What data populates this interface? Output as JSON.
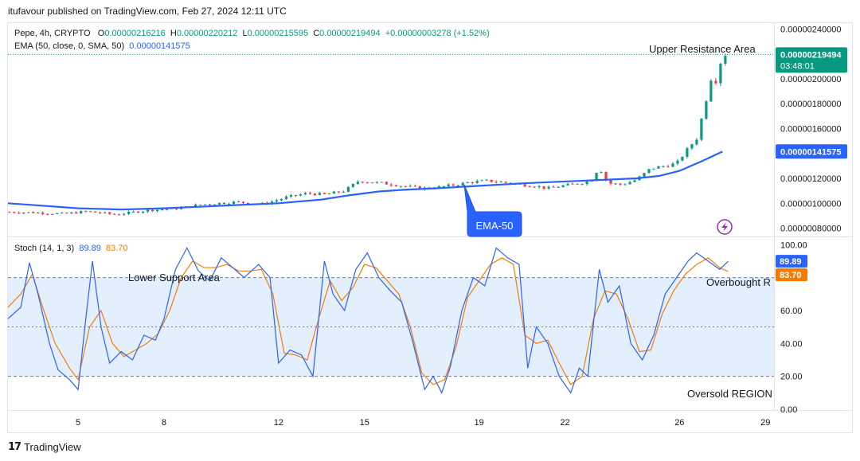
{
  "header": {
    "publisher": "itufavour published on TradingView.com, Feb 27, 2024 12:11 UTC"
  },
  "main_legend": {
    "symbol": "Pepe, 4h, CRYPTO",
    "o_label": "O",
    "o_value": "0.00000216216",
    "h_label": "H",
    "h_value": "0.00000220212",
    "l_label": "L",
    "l_value": "0.00000215595",
    "c_label": "C",
    "c_value": "0.00000219494",
    "change": "+0.00000003278 (+1.52%)"
  },
  "ema_legend": {
    "label": "EMA (50, close, 0, SMA, 50)",
    "value": "0.00000141575"
  },
  "stoch_legend": {
    "label": "Stoch (14, 1, 3)",
    "k_value": "89.89",
    "d_value": "83.70"
  },
  "colors": {
    "up": "#089981",
    "down": "#f23645",
    "ema": "#2962ff",
    "stoch_k": "#2962ff",
    "stoch_d": "#f57c00",
    "band": "#e3effd",
    "badge_ema": "#2962ff",
    "badge_price": "#089981"
  },
  "chart_data": [
    {
      "type": "candlestick",
      "title": "Pepe, 4h, CRYPTO",
      "y_ticks": [
        "0.00000240000",
        "0.00000220000",
        "0.00000200000",
        "0.00000180000",
        "0.00000160000",
        "0.00000140000",
        "0.00000120000",
        "0.00000100000",
        "0.00000080000"
      ],
      "ylim": [
        7.4e-07,
        2.44e-06
      ],
      "x_ticks": [
        "5",
        "8",
        "12",
        "15",
        "19",
        "22",
        "26",
        "29"
      ],
      "x_tick_days": [
        5,
        8,
        12,
        15,
        19,
        22,
        26,
        29
      ],
      "xlim_days": [
        2.55,
        29.3
      ],
      "last_price": "0.00000219494",
      "countdown": "03:48:01",
      "ema_value_label": "0.00000141575",
      "ema_series_name": "EMA-50",
      "annotations": [
        "Upper Resistance Area",
        "EMA-50"
      ],
      "ema_points": [
        [
          2.55,
          1.0
        ],
        [
          3.5,
          0.985
        ],
        [
          5.0,
          0.96
        ],
        [
          6.5,
          0.95
        ],
        [
          8.0,
          0.96
        ],
        [
          10.0,
          0.98
        ],
        [
          12.0,
          1.0
        ],
        [
          13.5,
          1.03
        ],
        [
          14.5,
          1.065
        ],
        [
          15.5,
          1.095
        ],
        [
          16.5,
          1.11
        ],
        [
          17.5,
          1.12
        ],
        [
          19.0,
          1.14
        ],
        [
          20.5,
          1.16
        ],
        [
          21.5,
          1.17
        ],
        [
          22.5,
          1.18
        ],
        [
          23.5,
          1.19
        ],
        [
          24.5,
          1.2
        ],
        [
          25.3,
          1.22
        ],
        [
          26.0,
          1.26
        ],
        [
          26.8,
          1.34
        ],
        [
          27.5,
          1.415
        ]
      ],
      "close_path": [
        [
          2.55,
          0.93
        ],
        [
          3.5,
          0.925
        ],
        [
          4.5,
          0.915
        ],
        [
          5.3,
          0.935
        ],
        [
          6.3,
          0.91
        ],
        [
          7.5,
          0.945
        ],
        [
          8.5,
          0.96
        ],
        [
          9.3,
          0.99
        ],
        [
          10.5,
          1.01
        ],
        [
          11.5,
          0.995
        ],
        [
          12.3,
          1.05
        ],
        [
          13.0,
          1.08
        ],
        [
          13.6,
          1.07
        ],
        [
          14.3,
          1.1
        ],
        [
          14.8,
          1.18
        ],
        [
          15.2,
          1.17
        ],
        [
          15.7,
          1.16
        ],
        [
          16.3,
          1.14
        ],
        [
          17.0,
          1.12
        ],
        [
          17.6,
          1.13
        ],
        [
          18.2,
          1.15
        ],
        [
          18.7,
          1.17
        ],
        [
          19.3,
          1.18
        ],
        [
          19.8,
          1.17
        ],
        [
          20.4,
          1.15
        ],
        [
          20.9,
          1.14
        ],
        [
          21.4,
          1.12
        ],
        [
          21.9,
          1.14
        ],
        [
          22.5,
          1.16
        ],
        [
          22.9,
          1.18
        ],
        [
          23.2,
          1.29
        ],
        [
          23.5,
          1.16
        ],
        [
          24.0,
          1.15
        ],
        [
          24.5,
          1.19
        ],
        [
          25.0,
          1.28
        ],
        [
          25.5,
          1.3
        ],
        [
          25.9,
          1.32
        ],
        [
          26.3,
          1.44
        ],
        [
          26.6,
          1.52
        ],
        [
          26.9,
          1.8
        ],
        [
          27.1,
          2.0
        ],
        [
          27.3,
          1.98
        ],
        [
          27.45,
          2.15
        ],
        [
          27.6,
          2.195
        ]
      ]
    },
    {
      "type": "line",
      "title": "Stoch (14, 1, 3)",
      "ylim": [
        0,
        104
      ],
      "y_ticks": [
        "100.00",
        "80.00",
        "60.00",
        "40.00",
        "20.00",
        "0.00"
      ],
      "bands": [
        20,
        50,
        80
      ],
      "annotations": [
        "Lower Support Area",
        "Overbought REGION",
        "Oversold REGION"
      ],
      "k_label": "89.89",
      "d_label": "83.70",
      "k_points": [
        [
          2.55,
          55
        ],
        [
          3.0,
          62
        ],
        [
          3.3,
          89
        ],
        [
          3.6,
          70
        ],
        [
          4.0,
          40
        ],
        [
          4.3,
          24
        ],
        [
          4.7,
          18
        ],
        [
          5.0,
          12
        ],
        [
          5.3,
          60
        ],
        [
          5.5,
          90
        ],
        [
          5.8,
          50
        ],
        [
          6.1,
          28
        ],
        [
          6.5,
          35
        ],
        [
          6.9,
          30
        ],
        [
          7.3,
          45
        ],
        [
          7.7,
          42
        ],
        [
          8.0,
          55
        ],
        [
          8.4,
          85
        ],
        [
          8.8,
          98
        ],
        [
          9.2,
          84
        ],
        [
          9.6,
          78
        ],
        [
          10.0,
          92
        ],
        [
          10.4,
          86
        ],
        [
          10.8,
          80
        ],
        [
          11.3,
          88
        ],
        [
          11.7,
          80
        ],
        [
          12.0,
          28
        ],
        [
          12.4,
          36
        ],
        [
          12.8,
          33
        ],
        [
          13.2,
          20
        ],
        [
          13.6,
          90
        ],
        [
          13.9,
          70
        ],
        [
          14.3,
          60
        ],
        [
          14.7,
          85
        ],
        [
          15.1,
          95
        ],
        [
          15.5,
          80
        ],
        [
          15.9,
          72
        ],
        [
          16.3,
          65
        ],
        [
          16.7,
          40
        ],
        [
          17.1,
          12
        ],
        [
          17.4,
          20
        ],
        [
          17.7,
          10
        ],
        [
          18.0,
          26
        ],
        [
          18.4,
          60
        ],
        [
          18.8,
          80
        ],
        [
          19.2,
          75
        ],
        [
          19.6,
          98
        ],
        [
          20.0,
          92
        ],
        [
          20.4,
          88
        ],
        [
          20.7,
          25
        ],
        [
          21.0,
          50
        ],
        [
          21.4,
          40
        ],
        [
          21.8,
          20
        ],
        [
          22.2,
          10
        ],
        [
          22.5,
          25
        ],
        [
          22.8,
          20
        ],
        [
          23.2,
          85
        ],
        [
          23.5,
          65
        ],
        [
          23.9,
          75
        ],
        [
          24.3,
          40
        ],
        [
          24.7,
          30
        ],
        [
          25.1,
          45
        ],
        [
          25.5,
          70
        ],
        [
          25.9,
          80
        ],
        [
          26.3,
          90
        ],
        [
          26.6,
          95
        ],
        [
          27.0,
          90
        ],
        [
          27.4,
          85
        ],
        [
          27.7,
          89.89
        ]
      ],
      "d_points": [
        [
          2.55,
          62
        ],
        [
          3.0,
          70
        ],
        [
          3.4,
          82
        ],
        [
          3.8,
          60
        ],
        [
          4.2,
          40
        ],
        [
          4.7,
          25
        ],
        [
          5.0,
          18
        ],
        [
          5.4,
          50
        ],
        [
          5.8,
          60
        ],
        [
          6.2,
          40
        ],
        [
          6.6,
          32
        ],
        [
          7.0,
          36
        ],
        [
          7.4,
          40
        ],
        [
          7.8,
          46
        ],
        [
          8.2,
          60
        ],
        [
          8.6,
          80
        ],
        [
          9.0,
          90
        ],
        [
          9.4,
          86
        ],
        [
          9.8,
          86
        ],
        [
          10.2,
          88
        ],
        [
          10.6,
          84
        ],
        [
          11.0,
          84
        ],
        [
          11.4,
          85
        ],
        [
          11.8,
          70
        ],
        [
          12.2,
          34
        ],
        [
          12.6,
          33
        ],
        [
          13.0,
          30
        ],
        [
          13.4,
          55
        ],
        [
          13.8,
          78
        ],
        [
          14.2,
          66
        ],
        [
          14.6,
          74
        ],
        [
          15.0,
          88
        ],
        [
          15.4,
          86
        ],
        [
          15.8,
          78
        ],
        [
          16.2,
          70
        ],
        [
          16.6,
          50
        ],
        [
          17.0,
          22
        ],
        [
          17.4,
          15
        ],
        [
          17.8,
          18
        ],
        [
          18.2,
          38
        ],
        [
          18.6,
          68
        ],
        [
          19.0,
          78
        ],
        [
          19.4,
          88
        ],
        [
          19.8,
          92
        ],
        [
          20.2,
          88
        ],
        [
          20.6,
          45
        ],
        [
          21.0,
          40
        ],
        [
          21.4,
          42
        ],
        [
          21.8,
          28
        ],
        [
          22.2,
          15
        ],
        [
          22.6,
          20
        ],
        [
          23.0,
          55
        ],
        [
          23.4,
          72
        ],
        [
          23.8,
          70
        ],
        [
          24.2,
          55
        ],
        [
          24.6,
          35
        ],
        [
          25.0,
          36
        ],
        [
          25.4,
          58
        ],
        [
          25.8,
          72
        ],
        [
          26.2,
          82
        ],
        [
          26.6,
          88
        ],
        [
          27.0,
          92
        ],
        [
          27.4,
          86
        ],
        [
          27.7,
          83.7
        ]
      ]
    }
  ],
  "x_axis": [
    "5",
    "8",
    "12",
    "15",
    "19",
    "22",
    "26",
    "29"
  ],
  "footer": {
    "brand": "TradingView"
  }
}
